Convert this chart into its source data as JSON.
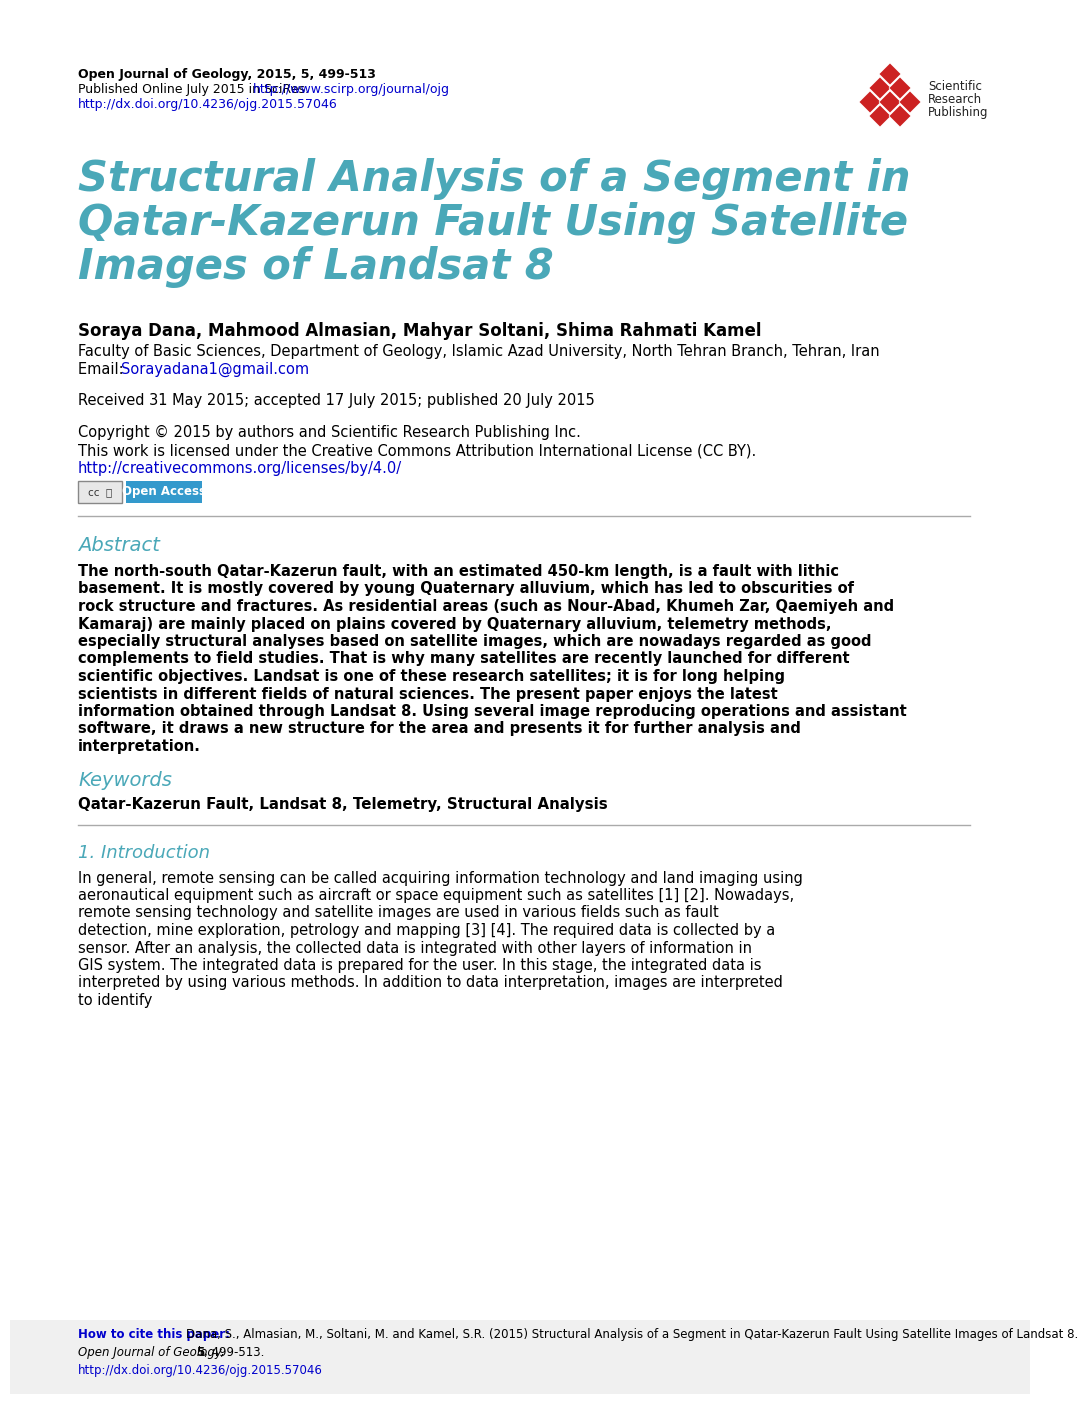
{
  "bg_color": "#ffffff",
  "header_journal": "Open Journal of Geology, 2015, 5, 499-513",
  "header_published": "Published Online July 2015 in SciRes. ",
  "header_url1": "http://www.scirp.org/journal/ojg",
  "header_url2": "http://dx.doi.org/10.4236/ojg.2015.57046",
  "title_line1": "Structural Analysis of a Segment in",
  "title_line2": "Qatar-Kazerun Fault Using Satellite",
  "title_line3": "Images of Landsat 8",
  "title_color": "#4aa8b8",
  "authors": "Soraya Dana, Mahmood Almasian, Mahyar Soltani, Shima Rahmati Kamel",
  "affiliation": "Faculty of Basic Sciences, Department of Geology, Islamic Azad University, North Tehran Branch, Tehran, Iran",
  "email_prefix": "Email: ",
  "email": "Sorayadana1@gmail.com",
  "received": "Received 31 May 2015; accepted 17 July 2015; published 20 July 2015",
  "copyright1": "Copyright © 2015 by authors and Scientific Research Publishing Inc.",
  "copyright2": "This work is licensed under the Creative Commons Attribution International License (CC BY).",
  "cc_url": "http://creativecommons.org/licenses/by/4.0/",
  "open_access_color": "#3399cc",
  "section_color": "#4aa8b8",
  "abstract_title": "Abstract",
  "abstract_text": "The north-south Qatar-Kazerun fault, with an estimated 450-km length, is a fault with lithic basement. It is mostly covered by young Quaternary alluvium, which has led to obscurities of rock structure and fractures. As residential areas (such as Nour-Abad, Khumeh Zar, Qaemiyeh and Kamaraj) are mainly placed on plains covered by Quaternary alluvium, telemetry methods, especially structural analyses based on satellite images, which are nowadays regarded as good complements to field studies. That is why many satellites are recently launched for different scientific objectives. Landsat is one of these research satellites; it is for long helping scientists in different fields of natural sciences. The present paper enjoys the latest information obtained through Landsat 8. Using several image reproducing operations and assistant software, it draws a new structure for the area and presents it for further analysis and interpretation.",
  "keywords_title": "Keywords",
  "keywords_text": "Qatar-Kazerun Fault, Landsat 8, Telemetry, Structural Analysis",
  "intro_title": "1. Introduction",
  "intro_text": "In general, remote sensing can be called acquiring information technology and land imaging using aeronautical equipment such as aircraft or space equipment such as satellites [1] [2]. Nowadays, remote sensing technology and satellite images are used in various fields such as fault detection, mine exploration, petrology and mapping [3] [4]. The required data is collected by a sensor. After an analysis, the collected data is integrated with other layers of information in GIS system. The integrated data is prepared for the user. In this stage, the integrated data is interpreted by using various methods. In addition to data interpretation, images are interpreted to identify",
  "footer_cite_label": "How to cite this paper: ",
  "footer_cite_text": "Dana, S., Almasian, M., Soltani, M. and Kamel, S.R. (2015) Structural Analysis of a Segment in Qatar-Kazerun Fault Using Satellite Images of Landsat 8. ",
  "footer_cite_journal": "Open Journal of Geology, ",
  "footer_cite_vol": "5",
  "footer_cite_pages": ", 499-513.",
  "footer_doi": "http://dx.doi.org/10.4236/ojg.2015.57046",
  "link_color": "#0000cc",
  "diamond_color": "#cc2222"
}
